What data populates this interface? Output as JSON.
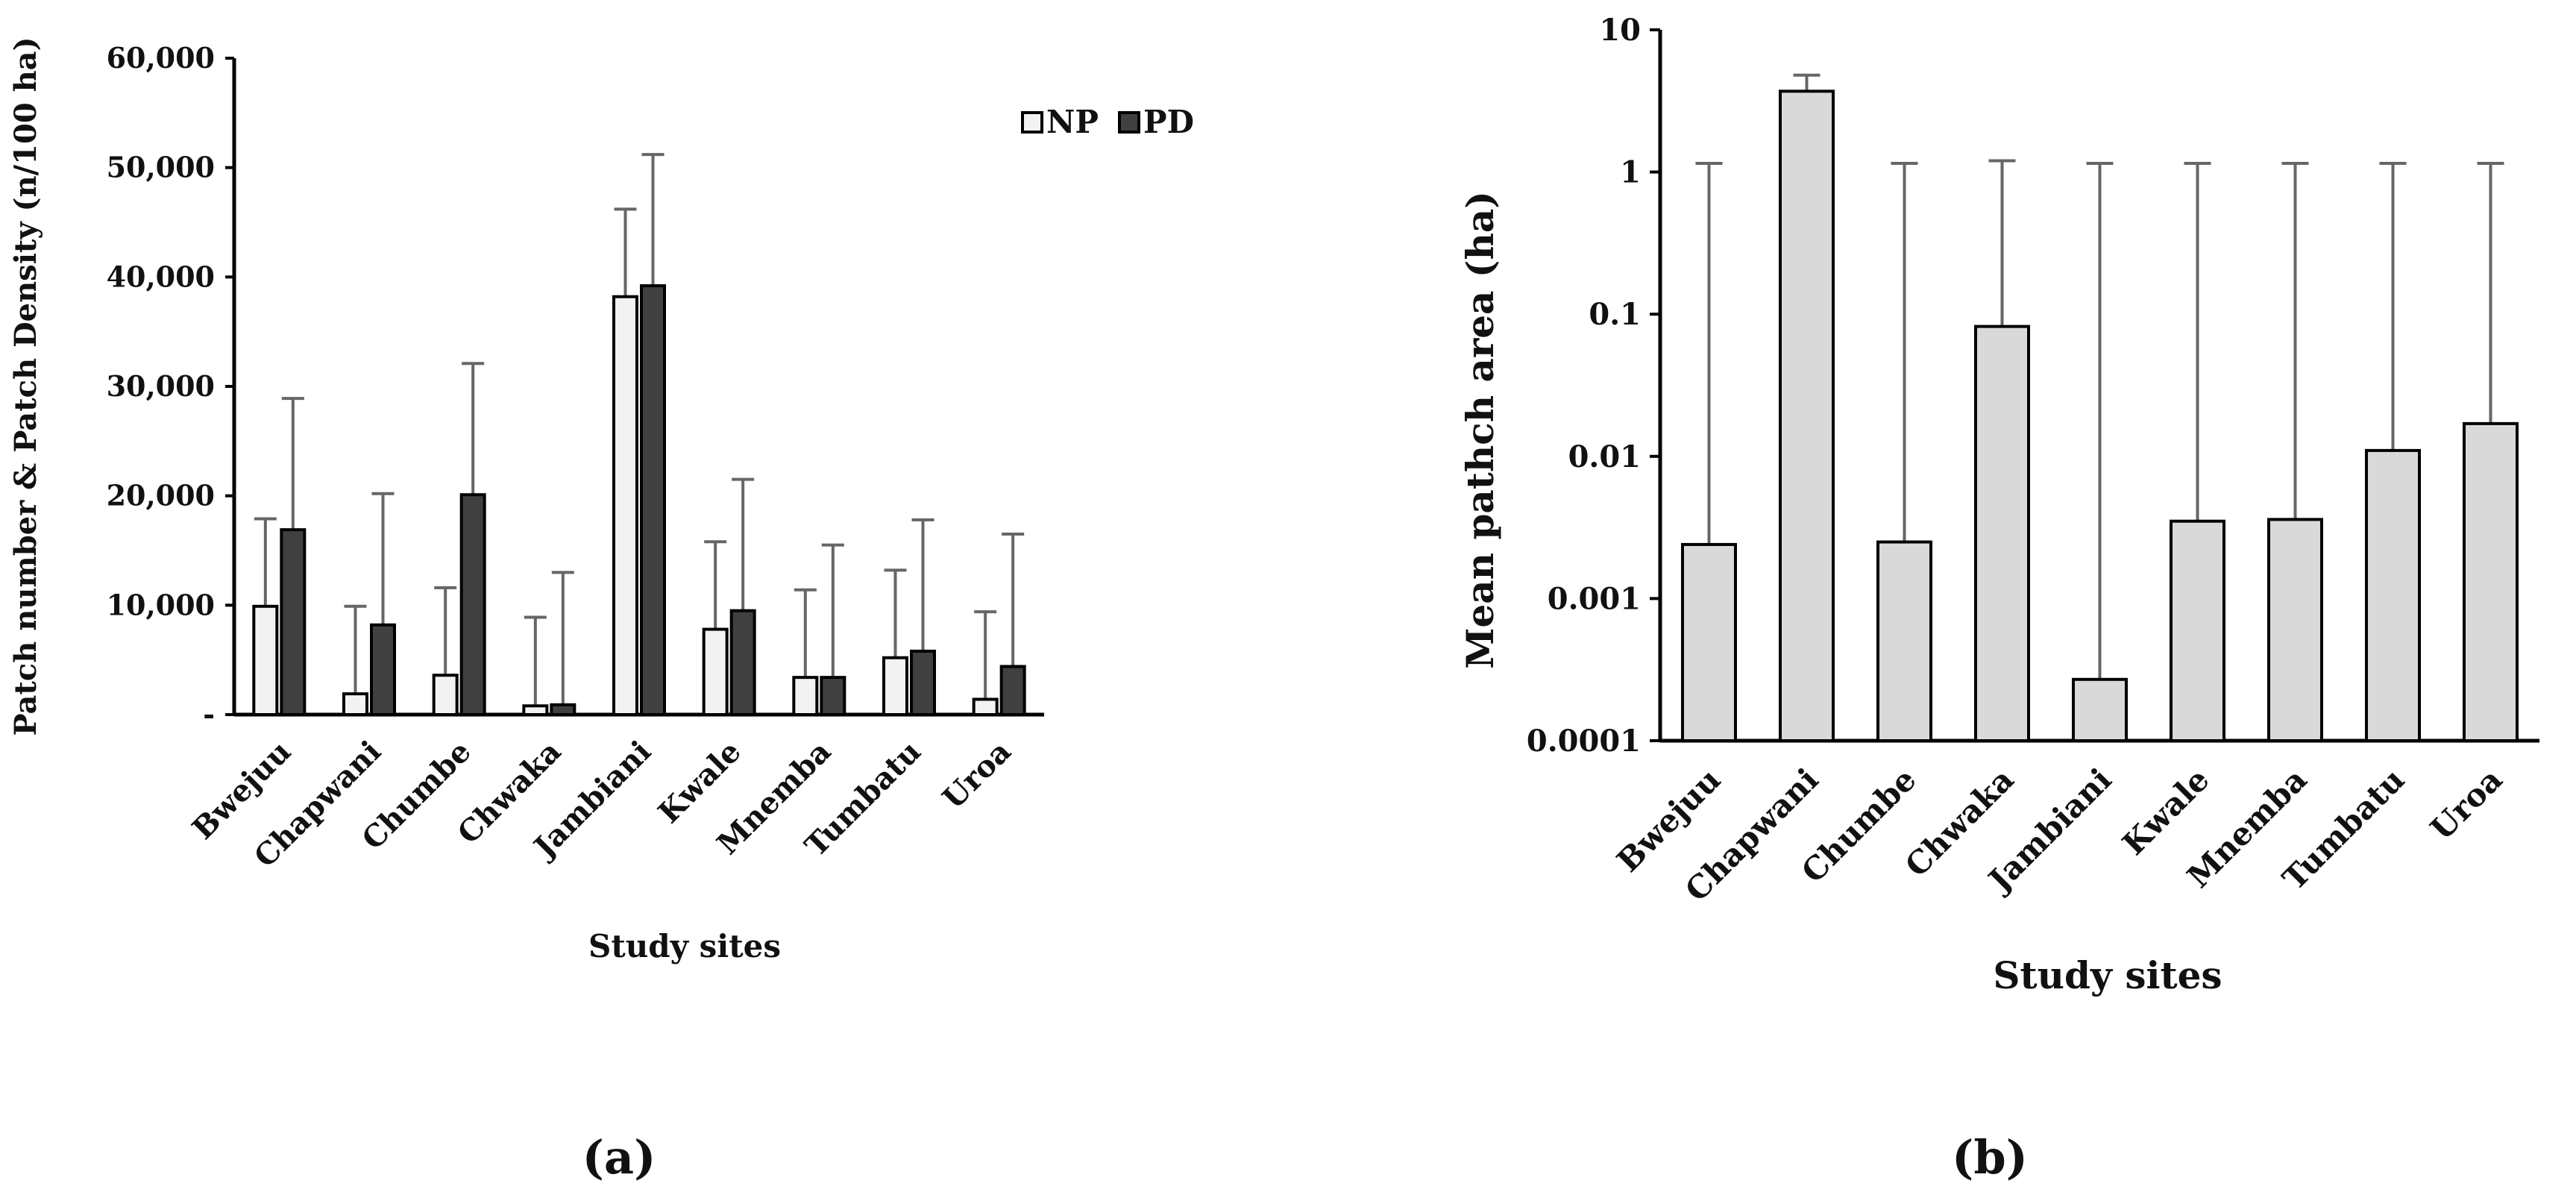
{
  "figure": {
    "panel_a_label": "(a)",
    "panel_b_label": "(b)"
  },
  "chart_data": [
    {
      "type": "bar",
      "categories": [
        "Bwejuu",
        "Chapwani",
        "Chumbe",
        "Chwaka",
        "Jambiani",
        "Kwale",
        "Mnemba",
        "Tumbatu",
        "Uroa"
      ],
      "series": [
        {
          "name": "NP",
          "color": "#f2f2f2",
          "values": [
            9900,
            1900,
            3600,
            800,
            38200,
            7800,
            3400,
            5200,
            1400
          ],
          "error_upper": [
            17900,
            9900,
            11600,
            8900,
            46200,
            15800,
            11400,
            13200,
            9400
          ]
        },
        {
          "name": "PD",
          "color": "#404040",
          "values": [
            16900,
            8200,
            20100,
            900,
            39200,
            9500,
            3400,
            5800,
            4400
          ],
          "error_upper": [
            28900,
            20200,
            32100,
            13000,
            51200,
            21500,
            15500,
            17800,
            16500
          ]
        }
      ],
      "title": "",
      "xlabel": "Study sites",
      "ylabel": "Patch number & Patch Density (n/100 ha)",
      "ylim": [
        0,
        60000
      ],
      "yticks": [
        0,
        10000,
        20000,
        30000,
        40000,
        50000,
        60000
      ],
      "ytick_labels": [
        "-",
        "10,000",
        "20,000",
        "30,000",
        "40,000",
        "50,000",
        "60,000"
      ],
      "legend": "top-right",
      "grid": false
    },
    {
      "type": "bar",
      "categories": [
        "Bwejuu",
        "Chapwani",
        "Chumbe",
        "Chwaka",
        "Jambiani",
        "Kwale",
        "Mnemba",
        "Tumbatu",
        "Uroa"
      ],
      "series": [
        {
          "name": "Mean patch area",
          "color": "#d9d9d9",
          "values": [
            0.0024,
            3.7,
            0.0025,
            0.082,
            0.00027,
            0.0035,
            0.0036,
            0.011,
            0.017
          ],
          "error_upper": [
            1.15,
            4.8,
            1.15,
            1.2,
            1.15,
            1.15,
            1.15,
            1.15,
            1.15
          ]
        }
      ],
      "title": "",
      "xlabel": "Study sites",
      "ylabel": "Mean pathch area (ha)",
      "yscale": "log",
      "ylim": [
        0.0001,
        10
      ],
      "yticks": [
        0.0001,
        0.001,
        0.01,
        0.1,
        1,
        10
      ],
      "ytick_labels": [
        "0.0001",
        "0.001",
        "0.01",
        "0.1",
        "1",
        "10"
      ],
      "grid": false
    }
  ]
}
